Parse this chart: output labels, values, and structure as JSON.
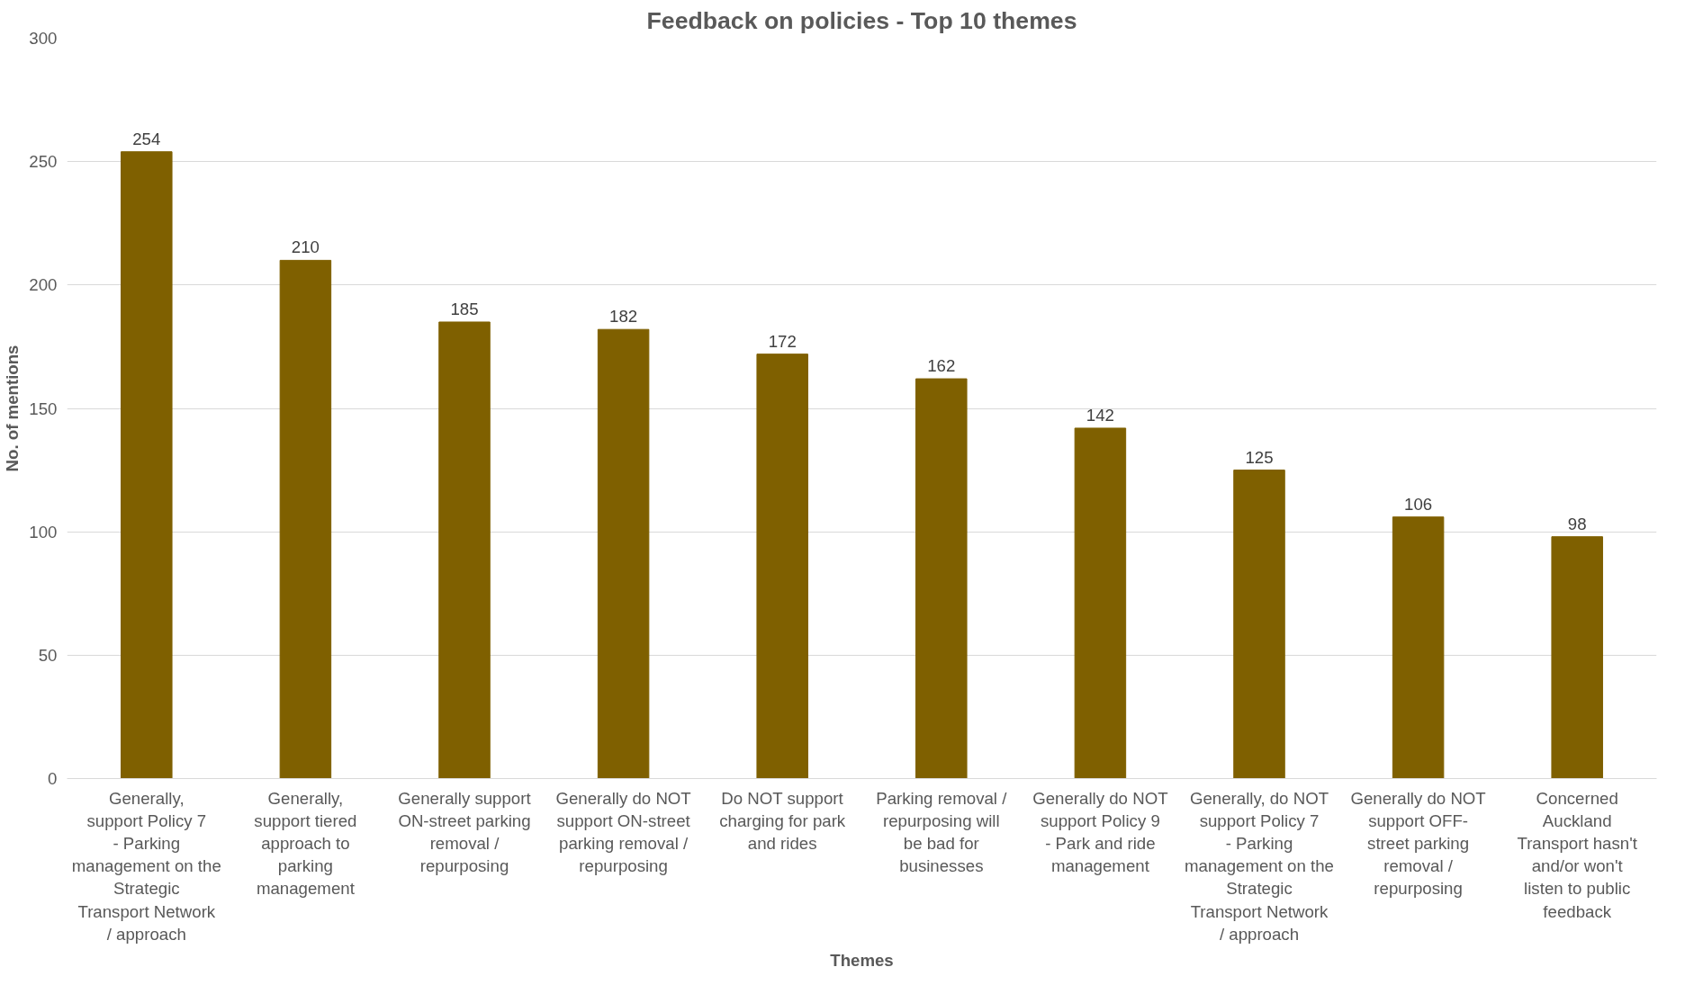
{
  "chart_data": {
    "type": "bar",
    "title": "Feedback on policies - Top 10 themes",
    "xlabel": "Themes",
    "ylabel": "No. of mentions",
    "categories": [
      "Generally, support Policy 7 - Parking management on the Strategic Transport Network / approach",
      "Generally, support tiered approach to parking management",
      "Generally support ON-street parking removal / repurposing",
      "Generally do NOT support ON-street parking removal / repurposing",
      "Do NOT support charging for park and rides",
      "Parking removal / repurposing will be bad for businesses",
      "Generally do NOT support Policy 9 - Park and ride management",
      "Generally, do NOT support Policy 7 - Parking management on the Strategic Transport Network / approach",
      "Generally do NOT support OFF-street parking removal / repurposing",
      "Concerned Auckland Transport hasn't and/or won't listen to public feedback"
    ],
    "values": [
      254,
      210,
      185,
      182,
      172,
      162,
      142,
      125,
      106,
      98
    ],
    "color": "#7f6000",
    "ylim": [
      0,
      300
    ],
    "yticks": [
      0,
      50,
      100,
      150,
      200,
      250,
      300
    ],
    "grid": "y",
    "data_labels": true
  }
}
